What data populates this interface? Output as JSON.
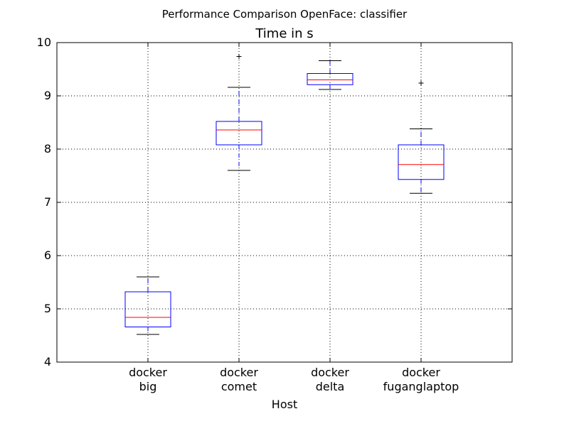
{
  "suptitle": "Performance Comparison OpenFace: classifier",
  "chart_data": {
    "type": "box",
    "title": "Time in s",
    "xlabel": "Host",
    "ylabel": "",
    "ylim": [
      4,
      10
    ],
    "yticks": [
      4,
      5,
      6,
      7,
      8,
      9,
      10
    ],
    "grid": true,
    "categories": [
      [
        "docker",
        "big"
      ],
      [
        "docker",
        "comet"
      ],
      [
        "docker",
        "delta"
      ],
      [
        "docker",
        "fuganglaptop"
      ]
    ],
    "boxes": [
      {
        "whisker_low": 4.52,
        "q1": 4.66,
        "median": 4.84,
        "q3": 5.32,
        "whisker_high": 5.6,
        "fliers": []
      },
      {
        "whisker_low": 7.6,
        "q1": 8.08,
        "median": 8.36,
        "q3": 8.52,
        "whisker_high": 9.16,
        "fliers": [
          9.74
        ]
      },
      {
        "whisker_low": 9.12,
        "q1": 9.21,
        "median": 9.3,
        "q3": 9.42,
        "whisker_high": 9.66,
        "fliers": []
      },
      {
        "whisker_low": 7.17,
        "q1": 7.43,
        "median": 7.71,
        "q3": 8.08,
        "whisker_high": 8.38,
        "fliers": [
          9.24
        ]
      }
    ],
    "colors": {
      "box": "#0000ff",
      "median": "#ff0000",
      "whisker": "#0000ff",
      "cap": "#000000",
      "flier": "#000000",
      "grid": "#000000"
    }
  }
}
